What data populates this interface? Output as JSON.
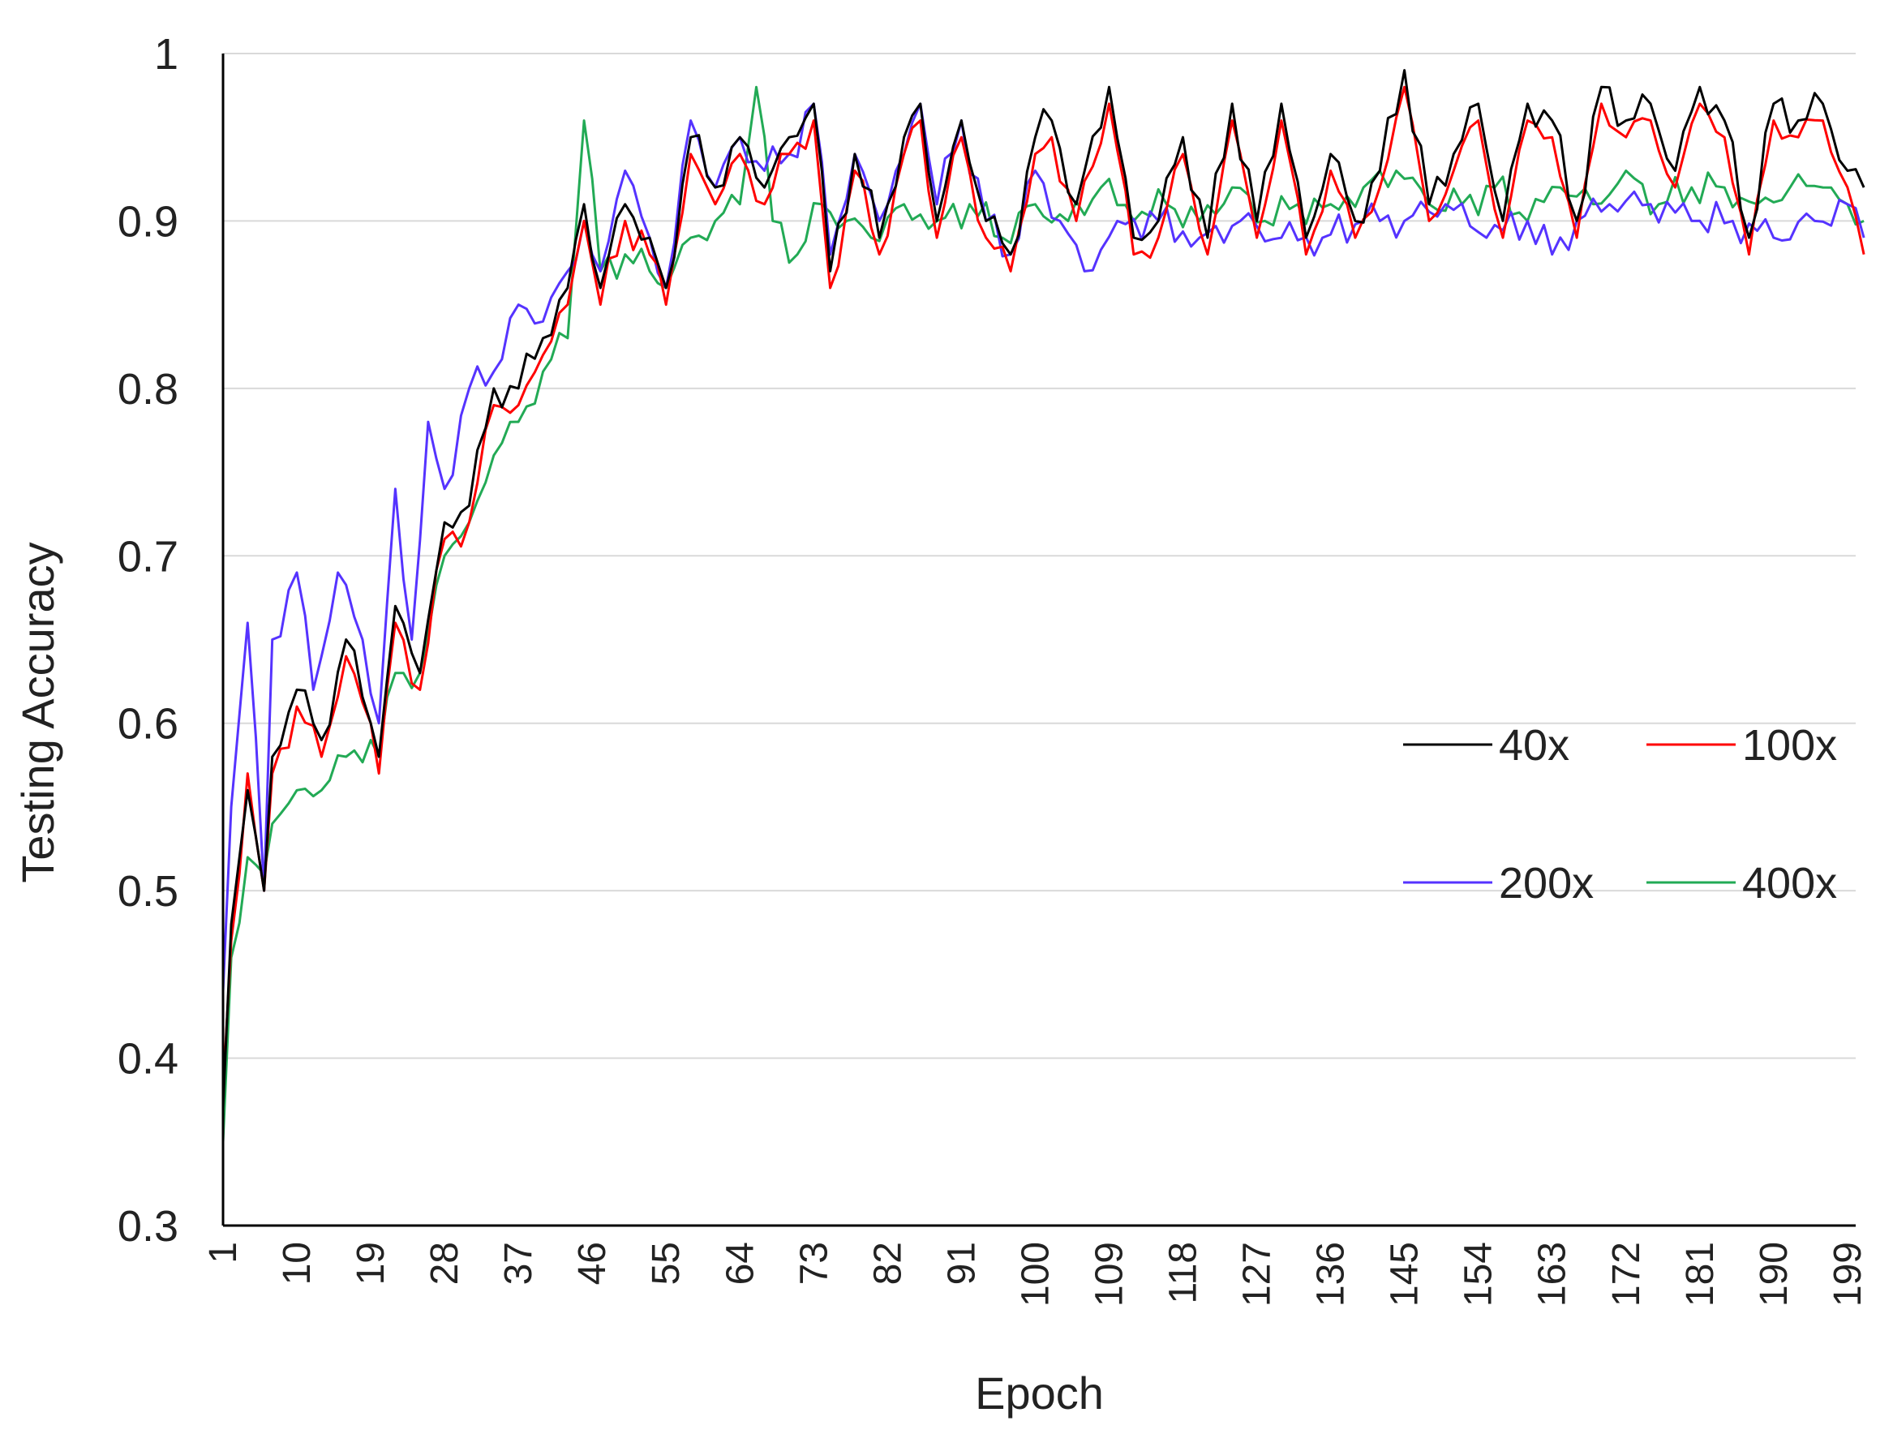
{
  "chart_data": {
    "type": "line",
    "title": "",
    "xlabel": "Epoch",
    "ylabel": "Testing Accuracy",
    "ylim": [
      0.3,
      1.0
    ],
    "xlim": [
      1,
      200
    ],
    "yticks": [
      "0.3",
      "0.4",
      "0.5",
      "0.6",
      "0.7",
      "0.8",
      "0.9",
      "1"
    ],
    "xticks": [
      "1",
      "10",
      "19",
      "28",
      "37",
      "46",
      "55",
      "64",
      "73",
      "82",
      "91",
      "100",
      "109",
      "118",
      "127",
      "136",
      "145",
      "154",
      "163",
      "172",
      "181",
      "190",
      "199"
    ],
    "grid": "horizontal",
    "legend_position": "right-middle",
    "anchor_note": "",
    "series": [
      {
        "name": "40x",
        "color": "#000000",
        "anchors": [
          [
            1,
            0.37
          ],
          [
            2,
            0.48
          ],
          [
            4,
            0.56
          ],
          [
            6,
            0.5
          ],
          [
            7,
            0.58
          ],
          [
            10,
            0.62
          ],
          [
            13,
            0.59
          ],
          [
            16,
            0.65
          ],
          [
            19,
            0.6
          ],
          [
            20,
            0.58
          ],
          [
            22,
            0.67
          ],
          [
            25,
            0.63
          ],
          [
            28,
            0.72
          ],
          [
            31,
            0.73
          ],
          [
            34,
            0.8
          ],
          [
            37,
            0.8
          ],
          [
            40,
            0.83
          ],
          [
            43,
            0.86
          ],
          [
            45,
            0.91
          ],
          [
            47,
            0.86
          ],
          [
            50,
            0.91
          ],
          [
            53,
            0.89
          ],
          [
            55,
            0.86
          ],
          [
            58,
            0.95
          ],
          [
            61,
            0.92
          ],
          [
            64,
            0.95
          ],
          [
            67,
            0.92
          ],
          [
            70,
            0.95
          ],
          [
            73,
            0.97
          ],
          [
            75,
            0.87
          ],
          [
            78,
            0.94
          ],
          [
            81,
            0.89
          ],
          [
            84,
            0.95
          ],
          [
            86,
            0.97
          ],
          [
            88,
            0.9
          ],
          [
            91,
            0.96
          ],
          [
            94,
            0.9
          ],
          [
            97,
            0.88
          ],
          [
            100,
            0.95
          ],
          [
            102,
            0.96
          ],
          [
            105,
            0.91
          ],
          [
            109,
            0.98
          ],
          [
            112,
            0.89
          ],
          [
            115,
            0.9
          ],
          [
            118,
            0.95
          ],
          [
            121,
            0.89
          ],
          [
            124,
            0.97
          ],
          [
            127,
            0.9
          ],
          [
            130,
            0.97
          ],
          [
            133,
            0.89
          ],
          [
            136,
            0.94
          ],
          [
            139,
            0.9
          ],
          [
            142,
            0.93
          ],
          [
            145,
            0.99
          ],
          [
            148,
            0.91
          ],
          [
            151,
            0.94
          ],
          [
            154,
            0.97
          ],
          [
            157,
            0.9
          ],
          [
            160,
            0.97
          ],
          [
            163,
            0.96
          ],
          [
            166,
            0.9
          ],
          [
            169,
            0.98
          ],
          [
            172,
            0.96
          ],
          [
            175,
            0.97
          ],
          [
            178,
            0.93
          ],
          [
            181,
            0.98
          ],
          [
            184,
            0.96
          ],
          [
            187,
            0.89
          ],
          [
            190,
            0.97
          ],
          [
            193,
            0.96
          ],
          [
            196,
            0.97
          ],
          [
            199,
            0.93
          ],
          [
            201,
            0.92
          ]
        ]
      },
      {
        "name": "100x",
        "color": "#ff0000",
        "anchors": [
          [
            1,
            0.38
          ],
          [
            2,
            0.47
          ],
          [
            4,
            0.57
          ],
          [
            6,
            0.5
          ],
          [
            7,
            0.57
          ],
          [
            10,
            0.61
          ],
          [
            13,
            0.58
          ],
          [
            16,
            0.64
          ],
          [
            19,
            0.6
          ],
          [
            20,
            0.57
          ],
          [
            22,
            0.66
          ],
          [
            25,
            0.62
          ],
          [
            28,
            0.71
          ],
          [
            31,
            0.72
          ],
          [
            34,
            0.79
          ],
          [
            37,
            0.79
          ],
          [
            40,
            0.82
          ],
          [
            43,
            0.85
          ],
          [
            45,
            0.9
          ],
          [
            47,
            0.85
          ],
          [
            50,
            0.9
          ],
          [
            53,
            0.88
          ],
          [
            55,
            0.85
          ],
          [
            58,
            0.94
          ],
          [
            61,
            0.91
          ],
          [
            64,
            0.94
          ],
          [
            67,
            0.91
          ],
          [
            70,
            0.94
          ],
          [
            73,
            0.96
          ],
          [
            75,
            0.86
          ],
          [
            78,
            0.93
          ],
          [
            81,
            0.88
          ],
          [
            84,
            0.94
          ],
          [
            86,
            0.96
          ],
          [
            88,
            0.89
          ],
          [
            91,
            0.95
          ],
          [
            94,
            0.89
          ],
          [
            97,
            0.87
          ],
          [
            100,
            0.94
          ],
          [
            102,
            0.95
          ],
          [
            105,
            0.9
          ],
          [
            109,
            0.97
          ],
          [
            112,
            0.88
          ],
          [
            115,
            0.89
          ],
          [
            118,
            0.94
          ],
          [
            121,
            0.88
          ],
          [
            124,
            0.96
          ],
          [
            127,
            0.89
          ],
          [
            130,
            0.96
          ],
          [
            133,
            0.88
          ],
          [
            136,
            0.93
          ],
          [
            139,
            0.89
          ],
          [
            142,
            0.92
          ],
          [
            145,
            0.98
          ],
          [
            148,
            0.9
          ],
          [
            151,
            0.93
          ],
          [
            154,
            0.96
          ],
          [
            157,
            0.89
          ],
          [
            160,
            0.96
          ],
          [
            163,
            0.95
          ],
          [
            166,
            0.89
          ],
          [
            169,
            0.97
          ],
          [
            172,
            0.95
          ],
          [
            175,
            0.96
          ],
          [
            178,
            0.92
          ],
          [
            181,
            0.97
          ],
          [
            184,
            0.95
          ],
          [
            187,
            0.88
          ],
          [
            190,
            0.96
          ],
          [
            193,
            0.95
          ],
          [
            196,
            0.96
          ],
          [
            199,
            0.92
          ],
          [
            201,
            0.88
          ]
        ]
      },
      {
        "name": "200x",
        "color": "#5533ff",
        "anchors": [
          [
            1,
            0.44
          ],
          [
            2,
            0.55
          ],
          [
            4,
            0.66
          ],
          [
            6,
            0.5
          ],
          [
            7,
            0.65
          ],
          [
            10,
            0.69
          ],
          [
            12,
            0.62
          ],
          [
            15,
            0.69
          ],
          [
            18,
            0.65
          ],
          [
            20,
            0.6
          ],
          [
            22,
            0.74
          ],
          [
            24,
            0.65
          ],
          [
            26,
            0.78
          ],
          [
            28,
            0.74
          ],
          [
            31,
            0.8
          ],
          [
            34,
            0.81
          ],
          [
            37,
            0.85
          ],
          [
            40,
            0.84
          ],
          [
            43,
            0.87
          ],
          [
            45,
            0.9
          ],
          [
            47,
            0.87
          ],
          [
            50,
            0.93
          ],
          [
            53,
            0.89
          ],
          [
            55,
            0.86
          ],
          [
            58,
            0.96
          ],
          [
            61,
            0.92
          ],
          [
            64,
            0.95
          ],
          [
            67,
            0.93
          ],
          [
            70,
            0.94
          ],
          [
            73,
            0.97
          ],
          [
            75,
            0.88
          ],
          [
            78,
            0.94
          ],
          [
            81,
            0.9
          ],
          [
            84,
            0.94
          ],
          [
            86,
            0.97
          ],
          [
            88,
            0.91
          ],
          [
            91,
            0.96
          ],
          [
            94,
            0.9
          ],
          [
            97,
            0.88
          ],
          [
            100,
            0.93
          ],
          [
            103,
            0.9
          ],
          [
            106,
            0.87
          ],
          [
            110,
            0.9
          ],
          [
            115,
            0.9
          ],
          [
            120,
            0.89
          ],
          [
            125,
            0.9
          ],
          [
            130,
            0.89
          ],
          [
            135,
            0.89
          ],
          [
            140,
            0.9
          ],
          [
            145,
            0.9
          ],
          [
            150,
            0.91
          ],
          [
            155,
            0.89
          ],
          [
            160,
            0.9
          ],
          [
            163,
            0.88
          ],
          [
            166,
            0.9
          ],
          [
            170,
            0.91
          ],
          [
            175,
            0.91
          ],
          [
            180,
            0.9
          ],
          [
            185,
            0.9
          ],
          [
            190,
            0.89
          ],
          [
            195,
            0.9
          ],
          [
            199,
            0.91
          ],
          [
            201,
            0.89
          ]
        ]
      },
      {
        "name": "400x",
        "color": "#22aa55",
        "anchors": [
          [
            1,
            0.35
          ],
          [
            2,
            0.46
          ],
          [
            4,
            0.52
          ],
          [
            6,
            0.51
          ],
          [
            7,
            0.54
          ],
          [
            10,
            0.56
          ],
          [
            13,
            0.56
          ],
          [
            16,
            0.58
          ],
          [
            19,
            0.59
          ],
          [
            20,
            0.58
          ],
          [
            22,
            0.63
          ],
          [
            25,
            0.63
          ],
          [
            28,
            0.7
          ],
          [
            31,
            0.72
          ],
          [
            34,
            0.76
          ],
          [
            37,
            0.78
          ],
          [
            40,
            0.81
          ],
          [
            43,
            0.83
          ],
          [
            45,
            0.96
          ],
          [
            47,
            0.87
          ],
          [
            50,
            0.88
          ],
          [
            53,
            0.87
          ],
          [
            55,
            0.86
          ],
          [
            58,
            0.89
          ],
          [
            61,
            0.9
          ],
          [
            64,
            0.91
          ],
          [
            66,
            0.98
          ],
          [
            68,
            0.9
          ],
          [
            71,
            0.88
          ],
          [
            74,
            0.91
          ],
          [
            77,
            0.9
          ],
          [
            80,
            0.89
          ],
          [
            84,
            0.91
          ],
          [
            88,
            0.9
          ],
          [
            92,
            0.91
          ],
          [
            96,
            0.89
          ],
          [
            100,
            0.91
          ],
          [
            104,
            0.9
          ],
          [
            108,
            0.92
          ],
          [
            112,
            0.9
          ],
          [
            116,
            0.91
          ],
          [
            120,
            0.9
          ],
          [
            124,
            0.92
          ],
          [
            128,
            0.9
          ],
          [
            132,
            0.91
          ],
          [
            136,
            0.91
          ],
          [
            140,
            0.92
          ],
          [
            144,
            0.93
          ],
          [
            148,
            0.91
          ],
          [
            152,
            0.91
          ],
          [
            156,
            0.92
          ],
          [
            160,
            0.9
          ],
          [
            164,
            0.92
          ],
          [
            168,
            0.91
          ],
          [
            172,
            0.93
          ],
          [
            176,
            0.91
          ],
          [
            180,
            0.92
          ],
          [
            184,
            0.92
          ],
          [
            188,
            0.91
          ],
          [
            192,
            0.92
          ],
          [
            196,
            0.92
          ],
          [
            199,
            0.91
          ],
          [
            201,
            0.9
          ]
        ]
      }
    ]
  }
}
